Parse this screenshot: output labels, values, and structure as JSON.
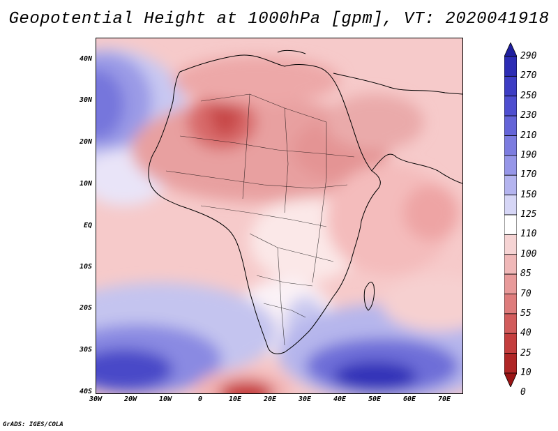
{
  "title": "Geopotential Height at 1000hPa [gpm], VT: 2020041918",
  "credit": "GrADS: IGES/COLA",
  "map": {
    "lat_labels": [
      "40N",
      "30N",
      "20N",
      "10N",
      "EQ",
      "10S",
      "20S",
      "30S",
      "40S"
    ],
    "lon_labels": [
      "30W",
      "20W",
      "10W",
      "0",
      "10E",
      "20E",
      "30E",
      "40E",
      "50E",
      "60E",
      "70E"
    ]
  },
  "colorbar": {
    "levels": [
      "290",
      "270",
      "250",
      "230",
      "210",
      "190",
      "170",
      "150",
      "125",
      "110",
      "100",
      "85",
      "70",
      "55",
      "40",
      "25",
      "10",
      "0"
    ],
    "colors": [
      "#1e1e9e",
      "#2c2cb4",
      "#3d3dc4",
      "#4e4ed0",
      "#6464d8",
      "#7c7ce0",
      "#9696e8",
      "#b4b4ef",
      "#d6d6f6",
      "#ffffff",
      "#f6d4d4",
      "#f0b8b8",
      "#e89a9a",
      "#de7c7c",
      "#d25c5c",
      "#c43e3e",
      "#b02626",
      "#9a1414"
    ]
  }
}
